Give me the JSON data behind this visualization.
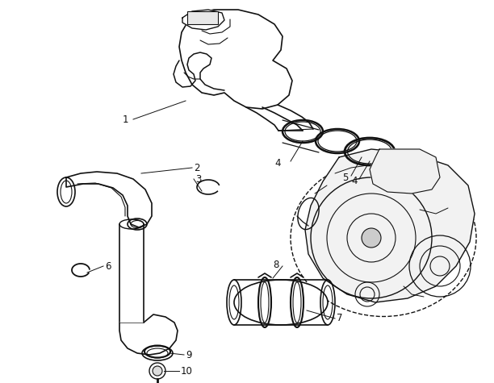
{
  "background_color": "#ffffff",
  "line_color": "#111111",
  "fig_width": 6.12,
  "fig_height": 4.75,
  "dpi": 100
}
